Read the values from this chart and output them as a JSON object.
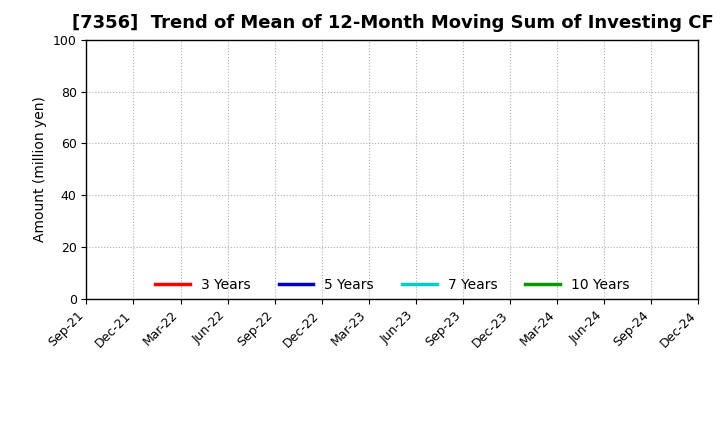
{
  "title": "[7356]  Trend of Mean of 12-Month Moving Sum of Investing CF",
  "ylabel": "Amount (million yen)",
  "ylim": [
    0,
    100
  ],
  "yticks": [
    0,
    20,
    40,
    60,
    80,
    100
  ],
  "xtick_labels": [
    "Sep-21",
    "Dec-21",
    "Mar-22",
    "Jun-22",
    "Sep-22",
    "Dec-22",
    "Mar-23",
    "Jun-23",
    "Sep-23",
    "Dec-23",
    "Mar-24",
    "Jun-24",
    "Sep-24",
    "Dec-24"
  ],
  "background_color": "#ffffff",
  "plot_background_color": "#ffffff",
  "grid_color": "#b0b0b0",
  "legend_entries": [
    {
      "label": "3 Years",
      "color": "#ff0000"
    },
    {
      "label": "5 Years",
      "color": "#0000cc"
    },
    {
      "label": "7 Years",
      "color": "#00cccc"
    },
    {
      "label": "10 Years",
      "color": "#009900"
    }
  ],
  "title_fontsize": 13,
  "axis_label_fontsize": 10,
  "tick_fontsize": 9,
  "legend_fontsize": 10
}
